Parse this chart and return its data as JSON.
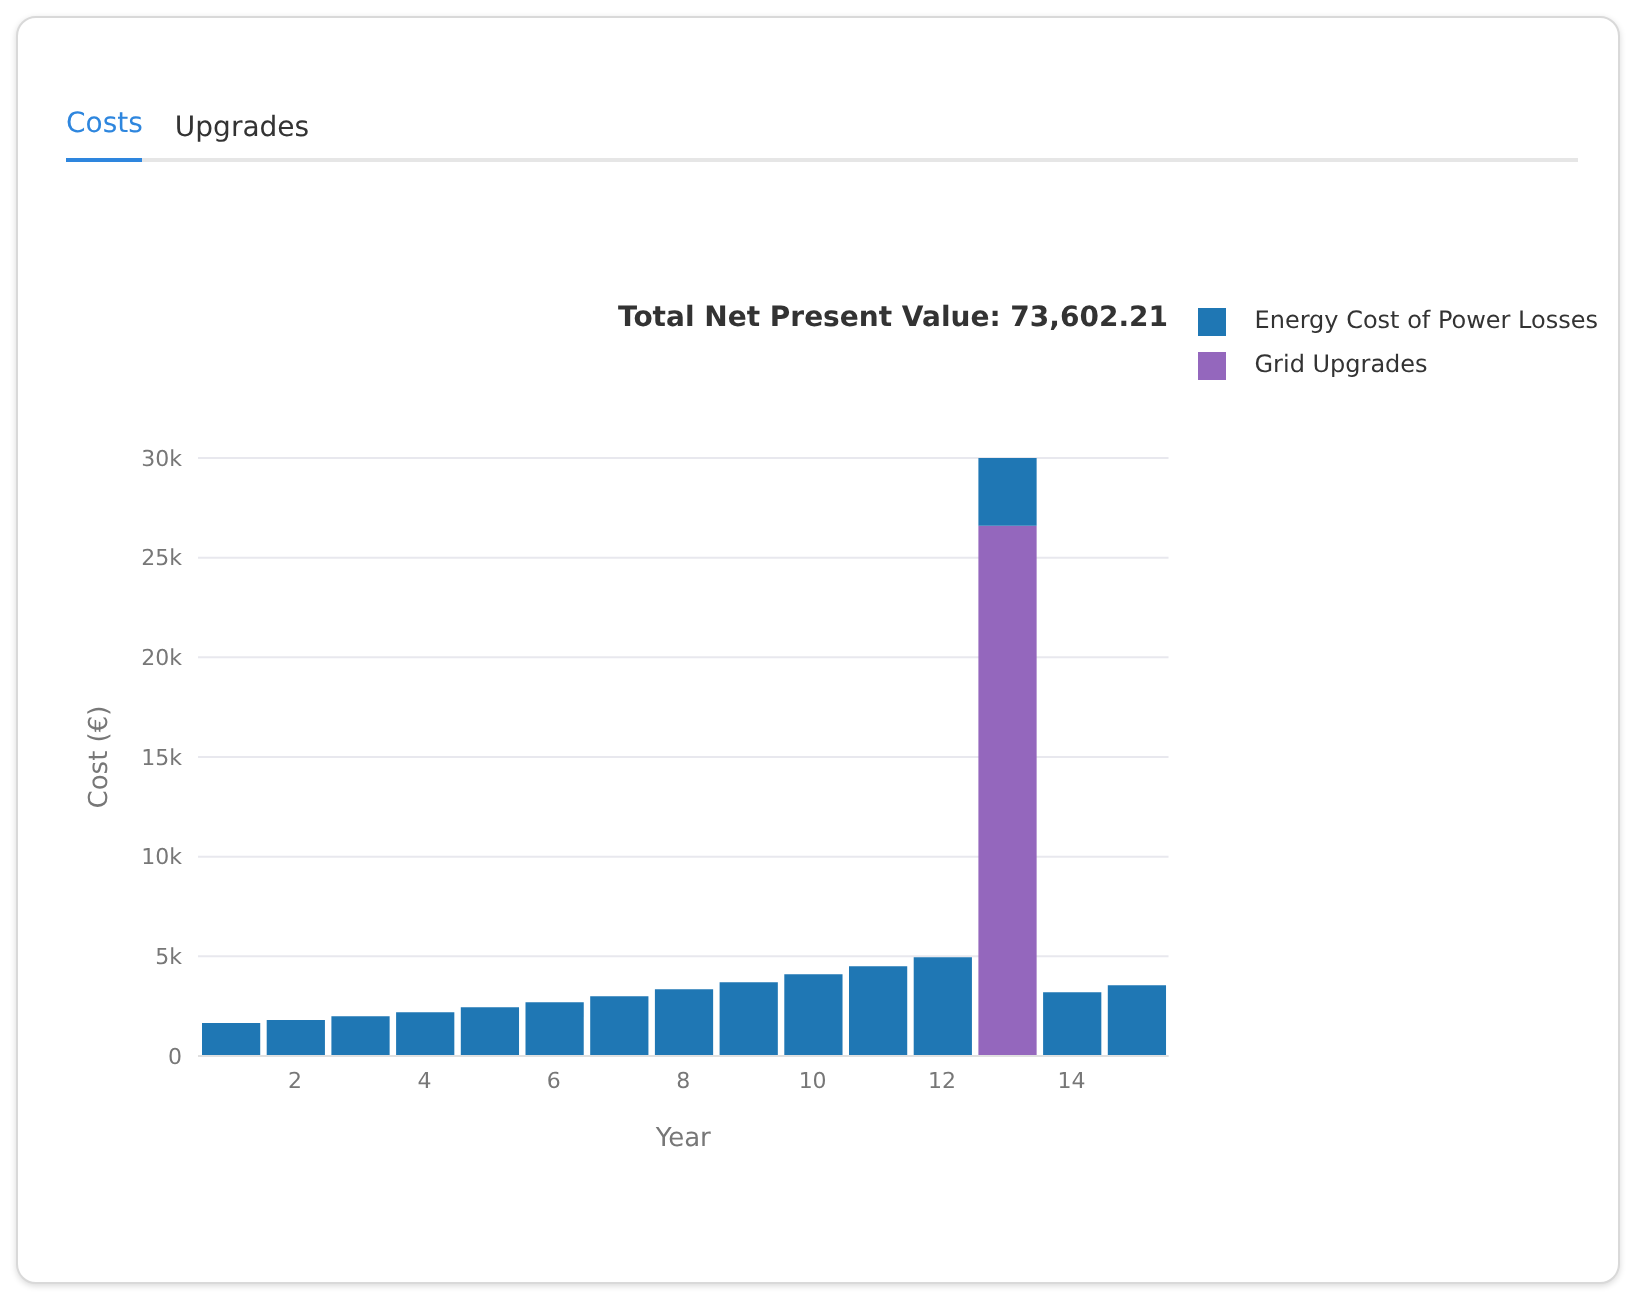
{
  "chart_data": {
    "type": "bar",
    "title": "Total Net Present Value: 73,602.21",
    "xlabel": "Year",
    "ylabel": "Cost (€)",
    "annotations": [
      "Costs",
      "Upgrades"
    ],
    "x": [
      1,
      2,
      3,
      4,
      5,
      6,
      7,
      8,
      9,
      10,
      11,
      12,
      13,
      14,
      15
    ],
    "series": [
      {
        "name": "Grid Upgrades",
        "color": "#9467bd",
        "values": [
          null,
          null,
          null,
          null,
          null,
          null,
          null,
          null,
          null,
          null,
          null,
          null,
          26600,
          null,
          null
        ]
      },
      {
        "name": "Energy Cost of Power Losses",
        "color": "#1f77b4",
        "values": [
          1650,
          1800,
          2000,
          2200,
          2450,
          2700,
          3000,
          3350,
          3700,
          4100,
          4500,
          4950,
          3400,
          3200,
          3550
        ]
      }
    ],
    "stacked": true,
    "xlim": [
      0.5,
      15.5
    ],
    "xticks": [
      2,
      4,
      6,
      8,
      10,
      12,
      14
    ],
    "ylim": [
      0,
      30000
    ],
    "yticks": [
      0,
      {
        "value": 5000,
        "label": "5k"
      },
      {
        "value": 10000,
        "label": "10k"
      },
      {
        "value": 15000,
        "label": "15k"
      },
      {
        "value": 20000,
        "label": "20k"
      },
      {
        "value": 25000,
        "label": "25k"
      },
      {
        "value": 30000,
        "label": "30k"
      }
    ],
    "grid": "y",
    "legend": "top right"
  }
}
